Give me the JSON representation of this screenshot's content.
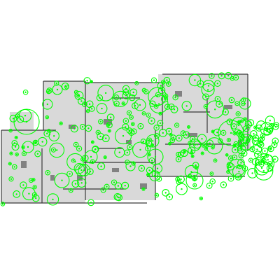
{
  "map": {
    "kind": "occupancy-grid-floorplan",
    "background_color": "#ffffff",
    "free_space_color": "#d9d9d9",
    "wall_color": "#3a3a3a",
    "marker_color": "#00ff00",
    "marker_shape": "circle-outline-with-center-dot",
    "marker_fill": "none"
  }
}
